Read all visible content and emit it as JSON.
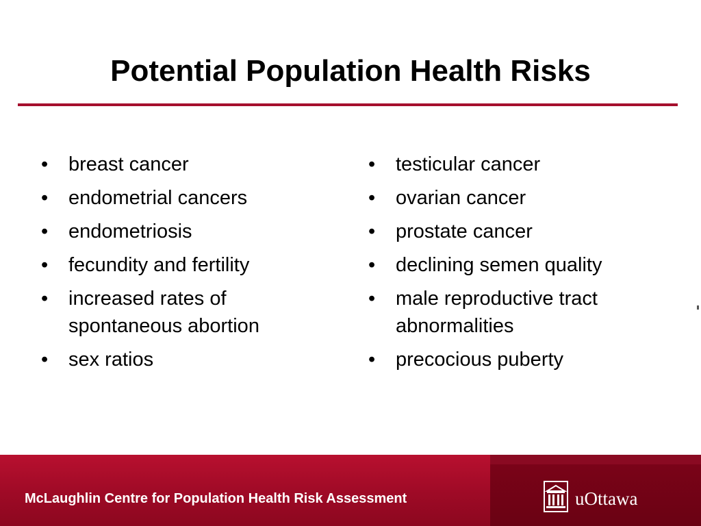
{
  "slide": {
    "title": "Potential Population Health Risks"
  },
  "left_column": {
    "items": [
      {
        "bullet": "•",
        "text": "breast cancer"
      },
      {
        "bullet": "•",
        "text": "endometrial cancers"
      },
      {
        "bullet": "•",
        "text": "endometriosis"
      },
      {
        "bullet": "•",
        "text": "fecundity and fertility"
      },
      {
        "bullet": "•",
        "text": "increased rates of spontaneous abortion"
      },
      {
        "bullet": "•",
        "text": "sex ratios"
      }
    ]
  },
  "right_column": {
    "items": [
      {
        "bullet": "•",
        "text": "testicular cancer"
      },
      {
        "bullet": "•",
        "text": "ovarian cancer"
      },
      {
        "bullet": "•",
        "text": "prostate cancer"
      },
      {
        "bullet": "•",
        "text": "declining semen quality"
      },
      {
        "bullet": "•",
        "text": "male reproductive tract abnormalities"
      },
      {
        "bullet": "•",
        "text": "precocious puberty"
      }
    ]
  },
  "footer": {
    "organization": "McLaughlin Centre for Population Health Risk Assessment",
    "logo_text": "uOttawa",
    "logo_icon": "university-building-icon"
  },
  "colors": {
    "accent": "#a50f2d",
    "footer": "#9e0a26",
    "footer_logo_panel": "#6a0213",
    "text": "#000000"
  }
}
